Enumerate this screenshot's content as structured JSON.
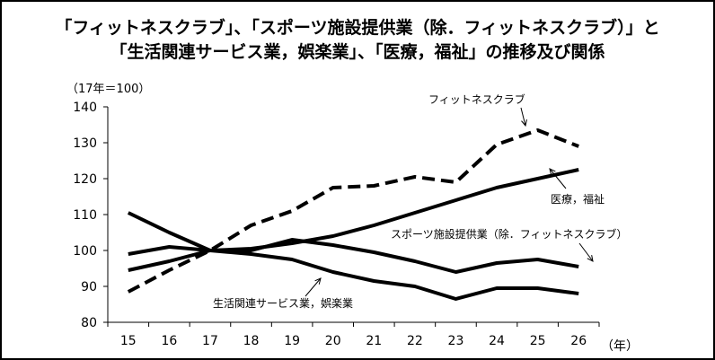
{
  "chart_data": {
    "type": "line",
    "title_lines": [
      "「フィットネスクラブ」、「スポーツ施設提供業（除．フィットネスクラブ）」と",
      "「生活関連サービス業，娯楽業」、「医療，福祉」の推移及び関係"
    ],
    "ylabel": "（17年＝100）",
    "xlabel_unit": "（年）",
    "x": [
      15,
      16,
      17,
      18,
      19,
      20,
      21,
      22,
      23,
      24,
      25,
      26
    ],
    "ylim": [
      80,
      140
    ],
    "yticks": [
      80,
      90,
      100,
      110,
      120,
      130,
      140
    ],
    "grid": false,
    "series": [
      {
        "name": "フィットネスクラブ",
        "style": "dashed",
        "values": [
          88.5,
          94.5,
          100,
          107,
          111,
          117.5,
          118,
          120.5,
          119,
          129.5,
          133.5,
          129
        ]
      },
      {
        "name": "医療，福祉",
        "style": "solid",
        "values": [
          94.5,
          97,
          100,
          100.5,
          102,
          104,
          107,
          110.5,
          114,
          117.5,
          120,
          122.5
        ]
      },
      {
        "name": "スポーツ施設提供業（除．フィットネスクラブ）",
        "style": "solid",
        "values": [
          99,
          101,
          100,
          100,
          103,
          101.5,
          99.5,
          97,
          94,
          96.5,
          97.5,
          95.5
        ]
      },
      {
        "name": "生活関連サービス業，娯楽業",
        "style": "solid",
        "values": [
          110.5,
          105,
          100,
          99,
          97.5,
          94,
          91.5,
          90,
          86.5,
          89.5,
          89.5,
          88
        ]
      }
    ]
  },
  "colors": {
    "line": "#000000",
    "background": "#ffffff"
  }
}
